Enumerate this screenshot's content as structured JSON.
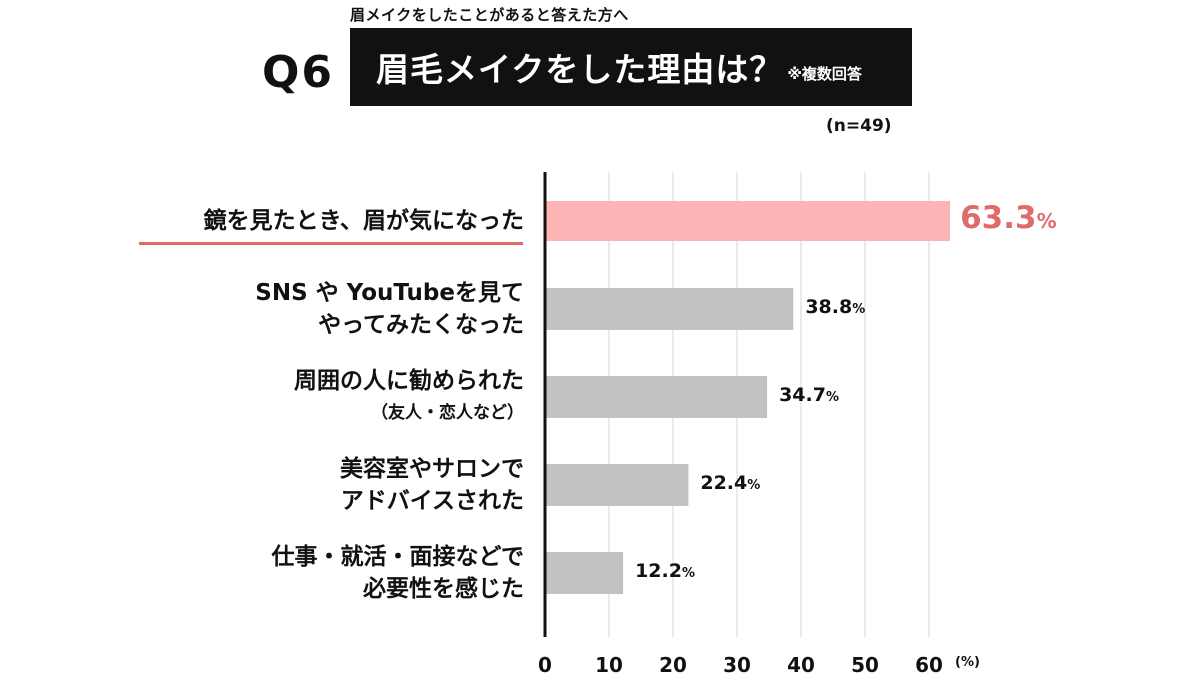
{
  "header": {
    "pre_title": "眉メイクをしたことがあると答えた方へ",
    "question_number": "Q6",
    "title": "眉毛メイクをした理由は？",
    "note": "※複数回答",
    "sample_size": "(n=49)"
  },
  "colors": {
    "highlight": "#e06b6b",
    "highlight_bar": "#fdb4b4",
    "bar": "#c2c2c2",
    "title_bg": "#111111"
  },
  "chart_data": {
    "type": "bar",
    "orientation": "horizontal",
    "categories": [
      [
        "鏡を見たとき、眉が気になった"
      ],
      [
        "SNS や YouTubeを見て",
        "やってみたくなった"
      ],
      [
        "周囲の人に勧められた",
        "（友人・恋人など）"
      ],
      [
        "美容室やサロンで",
        "アドバイスされた"
      ],
      [
        "仕事・就活・面接などで",
        "必要性を感じた"
      ]
    ],
    "values": [
      63.3,
      38.8,
      34.7,
      22.4,
      12.2
    ],
    "value_labels": [
      "63.3",
      "38.8",
      "34.7",
      "22.4",
      "12.2"
    ],
    "percent_sign": "%",
    "highlight_index": 0,
    "xlim": [
      0,
      70
    ],
    "xticks": [
      "0",
      "10",
      "20",
      "30",
      "40",
      "50",
      "60"
    ],
    "xtick_values": [
      0,
      10,
      20,
      30,
      40,
      50,
      60
    ],
    "x_unit": "(%)",
    "grid": true
  }
}
